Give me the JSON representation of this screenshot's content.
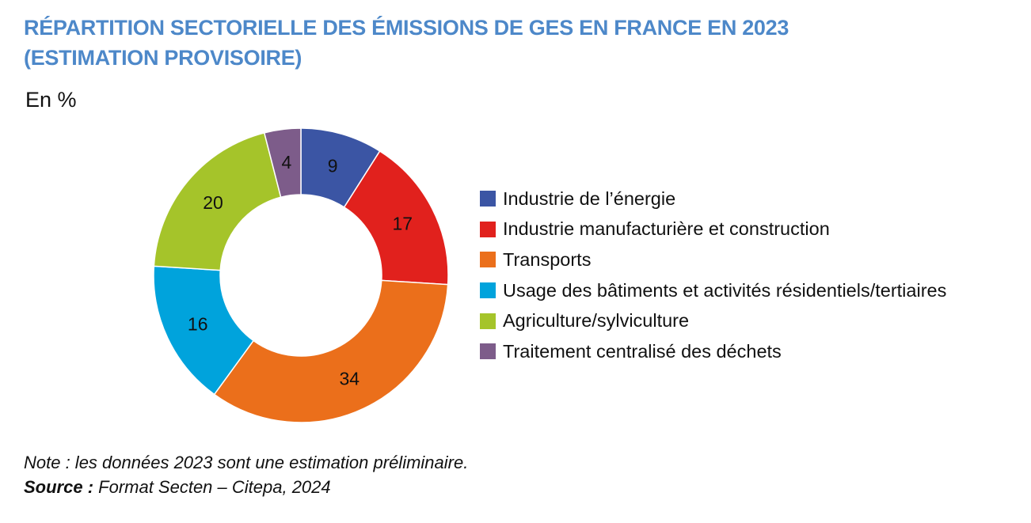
{
  "title_line1": "RÉPARTITION SECTORIELLE DES ÉMISSIONS DE GES EN FRANCE EN 2023",
  "title_line2": "(ESTIMATION PROVISOIRE)",
  "unit_label": "En %",
  "note": "Note : les données 2023 sont une estimation préliminaire.",
  "source_label": "Source :",
  "source_text": " Format Secten – Citepa, 2024",
  "chart_data": {
    "type": "pie",
    "donut": true,
    "legend_position": "right",
    "slices": [
      {
        "label": "Industrie de l’énergie",
        "value": 9,
        "color": "#3b55a4"
      },
      {
        "label": "Industrie manufacturière et construction",
        "value": 17,
        "color": "#e1211d"
      },
      {
        "label": "Transports",
        "value": 34,
        "color": "#eb6f1b"
      },
      {
        "label": "Usage des bâtiments et activités résidentiels/tertiaires",
        "value": 16,
        "color": "#00a3dc"
      },
      {
        "label": "Agriculture/sylviculture",
        "value": 20,
        "color": "#a5c42a"
      },
      {
        "label": "Traitement centralisé des déchets",
        "value": 4,
        "color": "#7d5c8a"
      }
    ]
  }
}
